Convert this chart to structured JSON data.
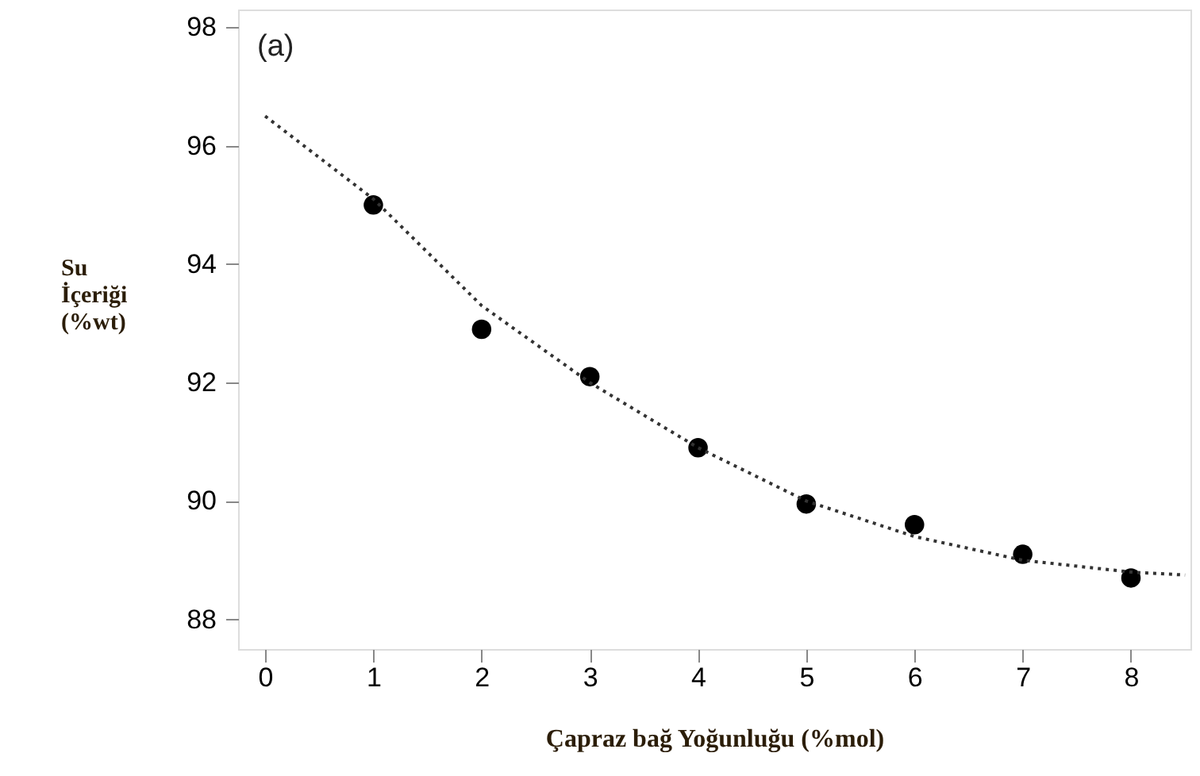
{
  "chart_data": {
    "type": "scatter",
    "xlabel": "Çapraz bağ Yoğunluğu (%mol)",
    "ylabel": "Su İçeriği (%wt)",
    "annotations": [
      "(a)"
    ],
    "xlim": [
      -0.25,
      8.55
    ],
    "xticks": [
      0,
      1,
      2,
      3,
      4,
      5,
      6,
      7,
      8
    ],
    "ylim": [
      87.5,
      98.3
    ],
    "yticks": [
      88,
      90,
      92,
      94,
      96,
      98
    ],
    "grid": false,
    "series": [
      {
        "color": "#000000",
        "marker": "circle",
        "x": [
          1,
          2,
          3,
          4,
          5,
          6,
          7,
          8
        ],
        "values": [
          95.0,
          92.9,
          92.1,
          90.9,
          89.95,
          89.6,
          89.1,
          88.7
        ]
      },
      {
        "type": "line",
        "color": "#333333",
        "line_style": "dotted",
        "x": [
          0,
          1,
          2,
          3,
          4,
          5,
          6,
          7,
          8,
          8.5
        ],
        "values": [
          96.5,
          95.1,
          93.3,
          92.0,
          90.9,
          90.0,
          89.4,
          89.0,
          88.8,
          88.75
        ]
      }
    ]
  }
}
